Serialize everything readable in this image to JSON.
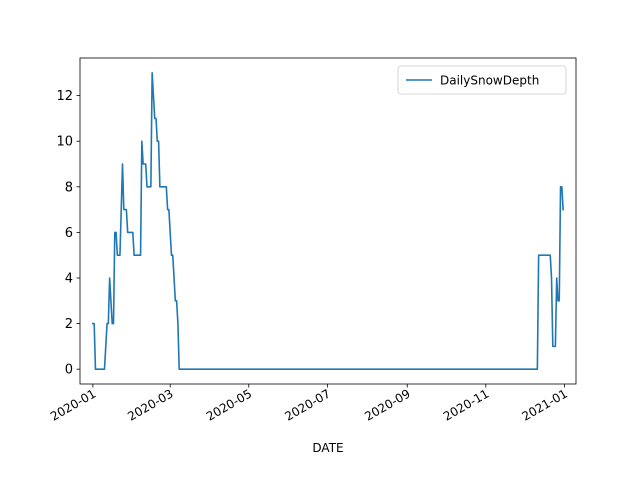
{
  "chart_data": {
    "type": "line",
    "xlabel": "DATE",
    "ylabel": "",
    "x_axis_type": "date",
    "xlim": [
      "2019-12-22",
      "2021-01-10"
    ],
    "ylim": [
      -0.65,
      13.65
    ],
    "x_ticks": [
      "2020-01",
      "2020-03",
      "2020-05",
      "2020-07",
      "2020-09",
      "2020-11",
      "2021-01"
    ],
    "y_ticks": [
      0,
      2,
      4,
      6,
      8,
      10,
      12
    ],
    "grid": false,
    "legend_position": "top-right",
    "series": [
      {
        "name": "DailySnowDepth",
        "color": "#1f77b4",
        "points": [
          [
            "2020-01-01",
            2
          ],
          [
            "2020-01-02",
            2
          ],
          [
            "2020-01-03",
            0
          ],
          [
            "2020-01-04",
            0
          ],
          [
            "2020-01-05",
            0
          ],
          [
            "2020-01-06",
            0
          ],
          [
            "2020-01-07",
            0
          ],
          [
            "2020-01-08",
            0
          ],
          [
            "2020-01-09",
            0
          ],
          [
            "2020-01-10",
            0
          ],
          [
            "2020-01-11",
            1
          ],
          [
            "2020-01-12",
            2
          ],
          [
            "2020-01-13",
            2
          ],
          [
            "2020-01-14",
            4
          ],
          [
            "2020-01-15",
            3
          ],
          [
            "2020-01-16",
            2
          ],
          [
            "2020-01-17",
            2
          ],
          [
            "2020-01-18",
            6
          ],
          [
            "2020-01-19",
            6
          ],
          [
            "2020-01-20",
            5
          ],
          [
            "2020-01-21",
            5
          ],
          [
            "2020-01-22",
            5
          ],
          [
            "2020-01-23",
            7
          ],
          [
            "2020-01-24",
            9
          ],
          [
            "2020-01-25",
            7
          ],
          [
            "2020-01-26",
            7
          ],
          [
            "2020-01-27",
            7
          ],
          [
            "2020-01-28",
            6
          ],
          [
            "2020-01-29",
            6
          ],
          [
            "2020-01-30",
            6
          ],
          [
            "2020-01-31",
            6
          ],
          [
            "2020-02-01",
            6
          ],
          [
            "2020-02-02",
            5
          ],
          [
            "2020-02-03",
            5
          ],
          [
            "2020-02-04",
            5
          ],
          [
            "2020-02-05",
            5
          ],
          [
            "2020-02-06",
            5
          ],
          [
            "2020-02-07",
            5
          ],
          [
            "2020-02-08",
            10
          ],
          [
            "2020-02-09",
            9
          ],
          [
            "2020-02-10",
            9
          ],
          [
            "2020-02-11",
            9
          ],
          [
            "2020-02-12",
            8
          ],
          [
            "2020-02-13",
            8
          ],
          [
            "2020-02-14",
            8
          ],
          [
            "2020-02-15",
            8
          ],
          [
            "2020-02-16",
            13
          ],
          [
            "2020-02-17",
            12
          ],
          [
            "2020-02-18",
            11
          ],
          [
            "2020-02-19",
            11
          ],
          [
            "2020-02-20",
            10
          ],
          [
            "2020-02-21",
            10
          ],
          [
            "2020-02-22",
            8
          ],
          [
            "2020-02-23",
            8
          ],
          [
            "2020-02-24",
            8
          ],
          [
            "2020-02-25",
            8
          ],
          [
            "2020-02-26",
            8
          ],
          [
            "2020-02-27",
            8
          ],
          [
            "2020-02-28",
            7
          ],
          [
            "2020-02-29",
            7
          ],
          [
            "2020-03-01",
            6
          ],
          [
            "2020-03-02",
            5
          ],
          [
            "2020-03-03",
            5
          ],
          [
            "2020-03-04",
            4
          ],
          [
            "2020-03-05",
            3
          ],
          [
            "2020-03-06",
            3
          ],
          [
            "2020-03-07",
            2
          ],
          [
            "2020-03-08",
            0
          ],
          [
            "2020-12-11",
            0
          ],
          [
            "2020-12-12",
            5
          ],
          [
            "2020-12-13",
            5
          ],
          [
            "2020-12-14",
            5
          ],
          [
            "2020-12-15",
            5
          ],
          [
            "2020-12-16",
            5
          ],
          [
            "2020-12-17",
            5
          ],
          [
            "2020-12-18",
            5
          ],
          [
            "2020-12-19",
            5
          ],
          [
            "2020-12-20",
            5
          ],
          [
            "2020-12-21",
            5
          ],
          [
            "2020-12-22",
            4
          ],
          [
            "2020-12-23",
            1
          ],
          [
            "2020-12-24",
            1
          ],
          [
            "2020-12-25",
            1
          ],
          [
            "2020-12-26",
            4
          ],
          [
            "2020-12-27",
            3
          ],
          [
            "2020-12-28",
            3
          ],
          [
            "2020-12-29",
            8
          ],
          [
            "2020-12-30",
            8
          ],
          [
            "2020-12-31",
            7
          ]
        ]
      }
    ]
  }
}
